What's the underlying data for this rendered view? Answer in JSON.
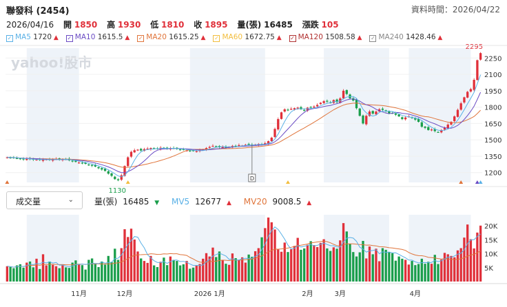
{
  "header": {
    "title": "聯發科 (2454)",
    "updated": "資料時間：2026/04/22",
    "date": "2026/04/16",
    "open_label": "開",
    "open": "1850",
    "high_label": "高",
    "high": "1930",
    "low_label": "低",
    "low": "1810",
    "close_label": "收",
    "close": "1895",
    "vol_label": "量(張)",
    "vol": "16485",
    "chg_label": "漲跌",
    "chg": "105"
  },
  "legend": [
    {
      "name": "MA5",
      "value": "1720",
      "color": "#59b0e6",
      "dir": "up"
    },
    {
      "name": "MA10",
      "value": "1615.5",
      "color": "#6a4bc4",
      "dir": "up"
    },
    {
      "name": "MA20",
      "value": "1615.25",
      "color": "#e0743a",
      "dir": "up"
    },
    {
      "name": "MA60",
      "value": "1672.75",
      "color": "#f2bd3d",
      "dir": "up"
    },
    {
      "name": "MA120",
      "value": "1508.58",
      "color": "#b03030",
      "dir": "up"
    },
    {
      "name": "MA240",
      "value": "1428.46",
      "color": "#888888",
      "dir": "up"
    }
  ],
  "indicator": {
    "select": "成交量",
    "vol_label": "量(張)",
    "vol_value": "16485",
    "vol_dir": "down",
    "mv5_label": "MV5",
    "mv5_value": "12677",
    "mv5_dir": "up",
    "mv5_color": "#59b0e6",
    "mv20_label": "MV20",
    "mv20_value": "9008.5",
    "mv20_dir": "up",
    "mv20_color": "#e0743a"
  },
  "watermark": "yahoo!股市",
  "marker_label": "D",
  "colors": {
    "up": "#e0303a",
    "down": "#1a9e4b",
    "shade": "#eef3f9"
  },
  "chart_data": {
    "type": "candlestick",
    "price_ticks": [
      1200,
      1350,
      1500,
      1650,
      1800,
      1950,
      2100,
      2250
    ],
    "price_range": [
      1110,
      2340
    ],
    "max_label": "2295",
    "min_label": "1130",
    "volume_ticks": [
      "5K",
      "10K",
      "15K",
      "20K"
    ],
    "volume_range": [
      0,
      24000
    ],
    "x_labels": [
      "11月",
      "12月",
      "2026 1月",
      "2月",
      "3月",
      "4月"
    ],
    "close": [
      1340,
      1335,
      1338,
      1330,
      1325,
      1320,
      1328,
      1322,
      1318,
      1320,
      1315,
      1318,
      1322,
      1315,
      1320,
      1325,
      1318,
      1322,
      1320,
      1312,
      1305,
      1298,
      1292,
      1288,
      1280,
      1270,
      1262,
      1255,
      1240,
      1228,
      1215,
      1190,
      1170,
      1140,
      1130,
      1175,
      1260,
      1340,
      1390,
      1405,
      1410,
      1402,
      1415,
      1420,
      1425,
      1418,
      1420,
      1428,
      1422,
      1418,
      1424,
      1420,
      1416,
      1412,
      1408,
      1404,
      1400,
      1398,
      1396,
      1405,
      1412,
      1425,
      1435,
      1445,
      1440,
      1432,
      1438,
      1430,
      1436,
      1445,
      1440,
      1452,
      1448,
      1455,
      1460,
      1452,
      1458,
      1462,
      1455,
      1470,
      1488,
      1520,
      1600,
      1690,
      1752,
      1780,
      1775,
      1785,
      1790,
      1795,
      1780,
      1768,
      1795,
      1800,
      1805,
      1820,
      1840,
      1855,
      1850,
      1840,
      1865,
      1845,
      1880,
      1950,
      1920,
      1880,
      1860,
      1790,
      1720,
      1650,
      1720,
      1760,
      1740,
      1760,
      1780,
      1775,
      1760,
      1740,
      1745,
      1730,
      1715,
      1690,
      1705,
      1715,
      1700,
      1685,
      1665,
      1620,
      1610,
      1590,
      1595,
      1580,
      1570,
      1590,
      1610,
      1640,
      1665,
      1715,
      1775,
      1835,
      1890,
      1940,
      1965,
      2050,
      2230,
      2295
    ],
    "volume": [
      5500,
      5200,
      4800,
      5800,
      6200,
      5000,
      6800,
      7200,
      5100,
      8200,
      4500,
      9800,
      5800,
      7200,
      6000,
      5500,
      4800,
      6200,
      5100,
      4900,
      6800,
      7600,
      6200,
      5900,
      4300,
      7800,
      8300,
      6400,
      5200,
      7200,
      6100,
      9200,
      7000,
      11800,
      7800,
      12000,
      18800,
      16000,
      19000,
      15100,
      10800,
      8300,
      7400,
      6700,
      9200,
      5800,
      5200,
      7100,
      8600,
      5900,
      9000,
      7800,
      7400,
      5800,
      6200,
      7400,
      4600,
      5000,
      5700,
      6300,
      8200,
      10200,
      9000,
      12200,
      8800,
      10800,
      7700,
      6400,
      6000,
      10100,
      8400,
      7800,
      8700,
      6800,
      9700,
      8900,
      10900,
      12000,
      15900,
      19200,
      23000,
      21300,
      18700,
      11500,
      10700,
      14000,
      10600,
      11600,
      12800,
      15700,
      11400,
      11900,
      13200,
      14500,
      13100,
      12400,
      13900,
      15200,
      11900,
      11000,
      12300,
      11800,
      14800,
      21000,
      18000,
      13600,
      10600,
      9000,
      10500,
      14600,
      8300,
      12600,
      9800,
      11800,
      7300,
      12000,
      11400,
      10600,
      10200,
      7500,
      9000,
      8200,
      7800,
      6100,
      7400,
      5900,
      6300,
      8200,
      6400,
      7100,
      6400,
      9600,
      6300,
      7900,
      10300,
      9800,
      9200,
      8700,
      11200,
      12000,
      15800,
      20500,
      15200,
      11900,
      17600,
      20100
    ]
  }
}
